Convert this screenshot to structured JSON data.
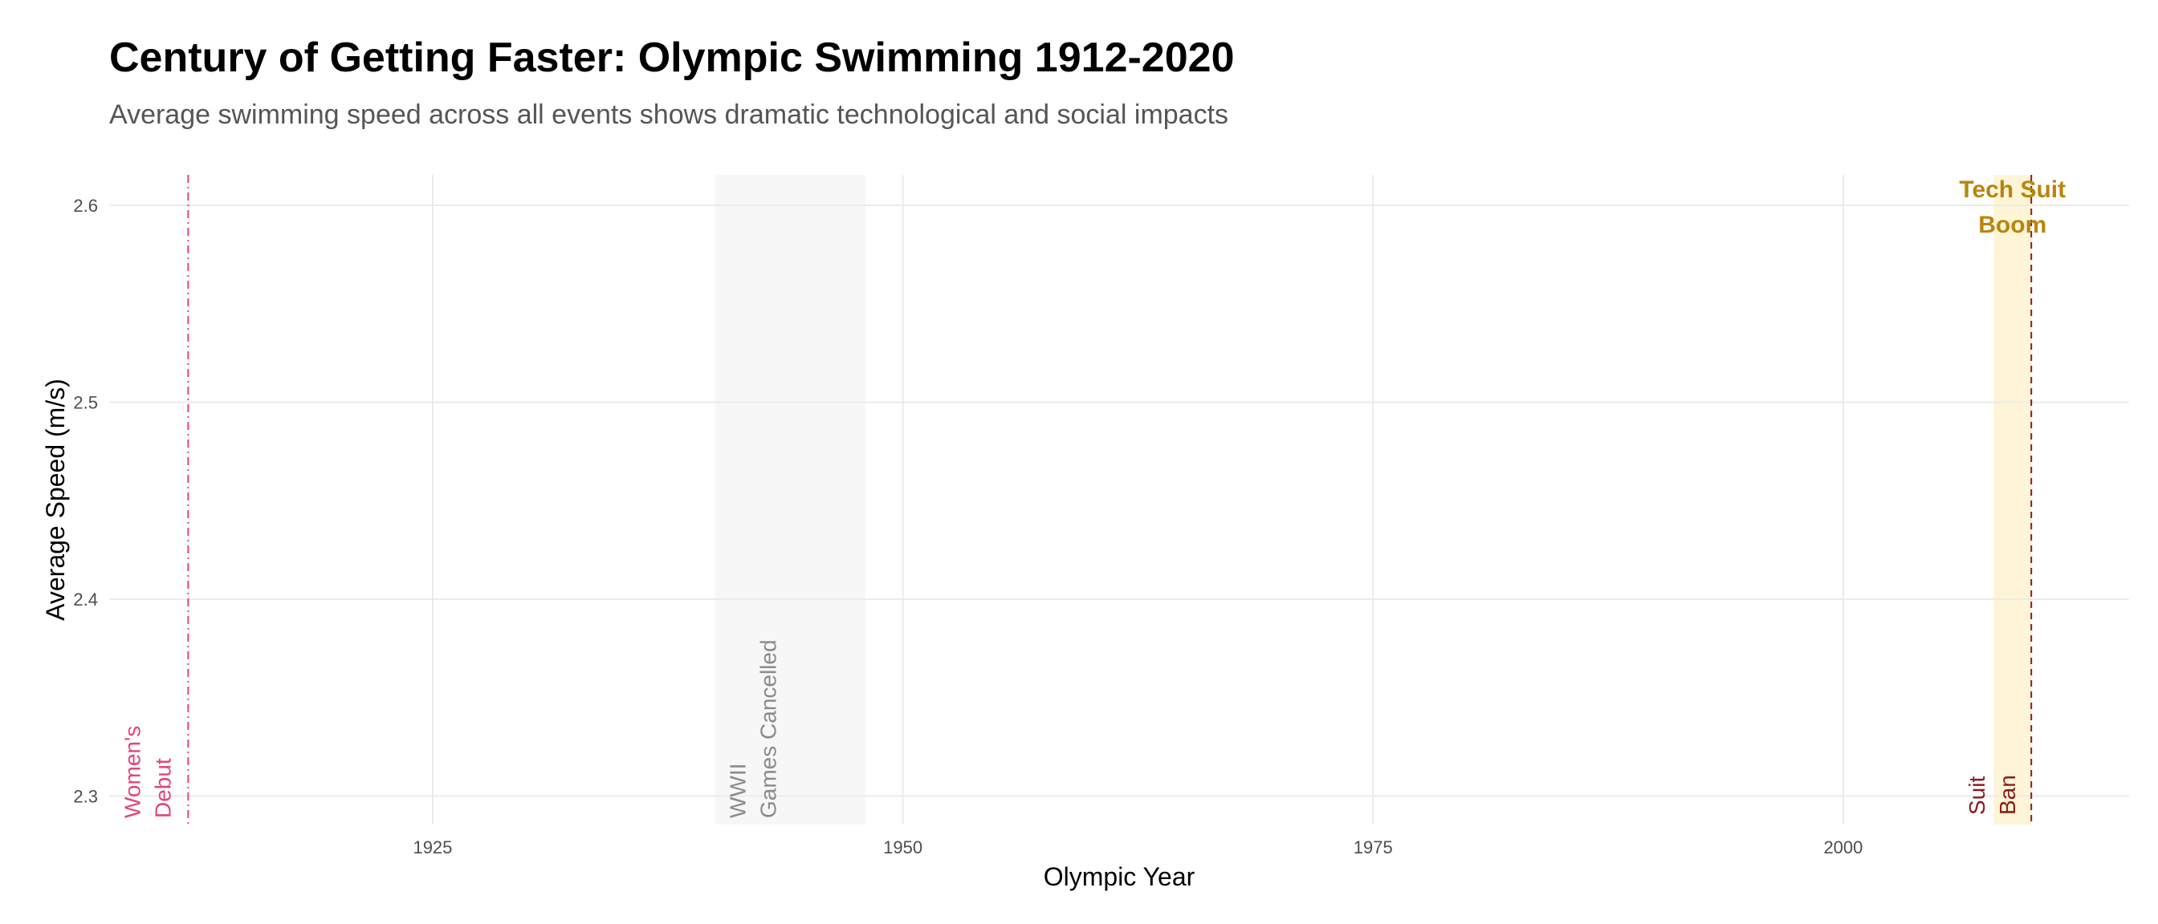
{
  "chart_data": {
    "type": "line",
    "title": "Century of Getting Faster: Olympic Swimming 1912-2020",
    "subtitle": "Average swimming speed across all events shows dramatic technological and social impacts",
    "xlabel": "Olympic Year",
    "ylabel": "Average Speed (m/s)",
    "xlim": [
      1907.8,
      2015.2
    ],
    "ylim": [
      2.2855,
      2.6155
    ],
    "x_ticks": [
      {
        "value": 1925,
        "label": "1925"
      },
      {
        "value": 1950,
        "label": "1950"
      },
      {
        "value": 1975,
        "label": "1975"
      },
      {
        "value": 2000,
        "label": "2000"
      }
    ],
    "y_ticks": [
      {
        "value": 2.3,
        "label": "2.3"
      },
      {
        "value": 2.4,
        "label": "2.4"
      },
      {
        "value": 2.5,
        "label": "2.5"
      },
      {
        "value": 2.6,
        "label": "2.6"
      }
    ],
    "grid": true,
    "series": [],
    "annotations": {
      "ww2_band": {
        "x_start": 1940,
        "x_end": 1948,
        "color": "#f7f7f7",
        "line1": "WWII",
        "line2": "Games Cancelled",
        "text_color": "#8a8a8a"
      },
      "tech_suit_band": {
        "x_start": 2008,
        "x_end": 2010,
        "color": "#fdf5d6",
        "line1": "Tech Suit",
        "line2": "Boom",
        "text_color": "#b8860b"
      },
      "womens_debut": {
        "x": 1912,
        "color": "#e0457b",
        "line1": "Women's",
        "line2": "Debut"
      },
      "suit_ban": {
        "x": 2010,
        "color": "#8b1a1a",
        "line1": "Suit",
        "line2": "Ban"
      }
    }
  }
}
